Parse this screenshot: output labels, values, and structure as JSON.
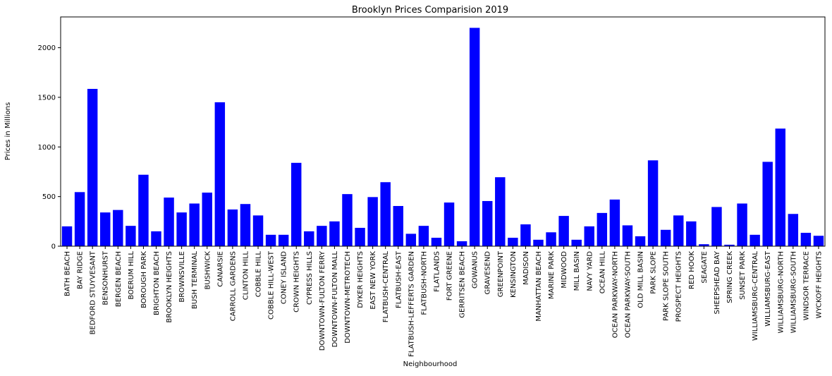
{
  "chart_data": {
    "type": "bar",
    "title": "Brooklyn Prices Comparision 2019",
    "xlabel": "Neighbourhood",
    "ylabel": "Prices in Millions",
    "ylim": [
      0,
      2310
    ],
    "yticks": [
      0,
      500,
      1000,
      1500,
      2000
    ],
    "bar_color": "#0000ff",
    "grid": false,
    "categories": [
      "BATH BEACH",
      "BAY RIDGE",
      "BEDFORD STUYVESANT",
      "BENSONHURST",
      "BERGEN BEACH",
      "BOERUM HILL",
      "BOROUGH PARK",
      "BRIGHTON BEACH",
      "BROOKLYN HEIGHTS",
      "BROWNSVILLE",
      "BUSH TERMINAL",
      "BUSHWICK",
      "CANARSIE",
      "CARROLL GARDENS",
      "CLINTON HILL",
      "COBBLE HILL",
      "COBBLE HILL-WEST",
      "CONEY ISLAND",
      "CROWN HEIGHTS",
      "CYPRESS HILLS",
      "DOWNTOWN-FULTON FERRY",
      "DOWNTOWN-FULTON MALL",
      "DOWNTOWN-METROTECH",
      "DYKER HEIGHTS",
      "EAST NEW YORK",
      "FLATBUSH-CENTRAL",
      "FLATBUSH-EAST",
      "FLATBUSH-LEFFERTS GARDEN",
      "FLATBUSH-NORTH",
      "FLATLANDS",
      "FORT GREENE",
      "GERRITSEN BEACH",
      "GOWANUS",
      "GRAVESEND",
      "GREENPOINT",
      "KENSINGTON",
      "MADISON",
      "MANHATTAN BEACH",
      "MARINE PARK",
      "MIDWOOD",
      "MILL BASIN",
      "NAVY YARD",
      "OCEAN HILL",
      "OCEAN PARKWAY-NORTH",
      "OCEAN PARKWAY-SOUTH",
      "OLD MILL BASIN",
      "PARK SLOPE",
      "PARK SLOPE SOUTH",
      "PROSPECT HEIGHTS",
      "RED HOOK",
      "SEAGATE",
      "SHEEPSHEAD BAY",
      "SPRING CREEK",
      "SUNSET PARK",
      "WILLIAMSBURG-CENTRAL",
      "WILLIAMSBURG-EAST",
      "WILLIAMSBURG-NORTH",
      "WILLIAMSBURG-SOUTH",
      "WINDSOR TERRACE",
      "WYCKOFF HEIGHTS"
    ],
    "values": [
      200,
      545,
      1585,
      340,
      365,
      205,
      720,
      150,
      490,
      340,
      430,
      540,
      1450,
      370,
      425,
      310,
      115,
      115,
      840,
      150,
      205,
      250,
      525,
      185,
      495,
      645,
      405,
      125,
      205,
      85,
      440,
      50,
      2200,
      455,
      695,
      85,
      220,
      65,
      140,
      305,
      65,
      200,
      335,
      470,
      210,
      100,
      865,
      165,
      310,
      250,
      20,
      395,
      15,
      430,
      115,
      850,
      1185,
      325,
      135,
      105
    ]
  }
}
